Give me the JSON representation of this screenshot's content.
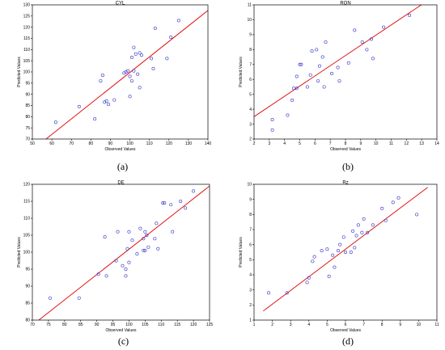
{
  "colors": {
    "points": "#3333cc",
    "fit_line": "#e00000",
    "frame": "#000000"
  },
  "chart_data": [
    {
      "type": "scatter",
      "panel_label": "(a)",
      "title": "CYL",
      "xlabel": "Observed Values",
      "ylabel": "Predicted Values",
      "xlim": [
        50,
        140
      ],
      "ylim": [
        70,
        130
      ],
      "xticks": [
        "50",
        "60",
        "70",
        "80",
        "90",
        "100",
        "110",
        "120",
        "130",
        "140"
      ],
      "yticks": [
        "70",
        "75",
        "80",
        "85",
        "90",
        "95",
        "100",
        "105",
        "110",
        "115",
        "120",
        "125",
        "130"
      ],
      "fit_line": [
        [
          57,
          70
        ],
        [
          140,
          127.5
        ]
      ],
      "points": [
        [
          62,
          77.5
        ],
        [
          74,
          84.5
        ],
        [
          82,
          79
        ],
        [
          85,
          96
        ],
        [
          86,
          98.5
        ],
        [
          87,
          86.5
        ],
        [
          88,
          87
        ],
        [
          89,
          85.5
        ],
        [
          92,
          87.5
        ],
        [
          97,
          99.5
        ],
        [
          98,
          100
        ],
        [
          99,
          100.5
        ],
        [
          100,
          98
        ],
        [
          100,
          89
        ],
        [
          101,
          96
        ],
        [
          101,
          106.5
        ],
        [
          102,
          111
        ],
        [
          102,
          100.5
        ],
        [
          103,
          108
        ],
        [
          104,
          99
        ],
        [
          105,
          93
        ],
        [
          105,
          108.5
        ],
        [
          106,
          107.5
        ],
        [
          111,
          106
        ],
        [
          112,
          101.5
        ],
        [
          113,
          119.5
        ],
        [
          119,
          106
        ],
        [
          121,
          115.5
        ],
        [
          125,
          123
        ]
      ]
    },
    {
      "type": "scatter",
      "panel_label": "(b)",
      "title": "RON",
      "xlabel": "Observed Values",
      "ylabel": "Predicted Values",
      "xlim": [
        2,
        14
      ],
      "ylim": [
        2,
        11
      ],
      "xticks": [
        "2",
        "3",
        "4",
        "5",
        "6",
        "7",
        "8",
        "9",
        "10",
        "11",
        "12",
        "13",
        "14"
      ],
      "yticks": [
        "2",
        "3",
        "4",
        "5",
        "6",
        "7",
        "8",
        "9",
        "10",
        "11"
      ],
      "fit_line": [
        [
          2,
          3.5
        ],
        [
          14,
          11.7
        ]
      ],
      "points": [
        [
          3.2,
          2.6
        ],
        [
          3.2,
          3.3
        ],
        [
          4.2,
          3.6
        ],
        [
          4.5,
          4.6
        ],
        [
          4.6,
          5.4
        ],
        [
          4.8,
          5.4
        ],
        [
          4.8,
          6.2
        ],
        [
          5.0,
          7.0
        ],
        [
          5.1,
          7.0
        ],
        [
          5.5,
          5.5
        ],
        [
          5.7,
          6.3
        ],
        [
          5.8,
          7.9
        ],
        [
          6.1,
          8.0
        ],
        [
          6.2,
          5.9
        ],
        [
          6.3,
          6.9
        ],
        [
          6.5,
          7.5
        ],
        [
          6.6,
          5.5
        ],
        [
          6.7,
          8.5
        ],
        [
          7.1,
          6.4
        ],
        [
          7.5,
          6.8
        ],
        [
          7.6,
          5.9
        ],
        [
          8.2,
          7.1
        ],
        [
          8.6,
          9.3
        ],
        [
          9.1,
          8.5
        ],
        [
          9.4,
          8.0
        ],
        [
          9.7,
          8.7
        ],
        [
          9.8,
          7.4
        ],
        [
          10.5,
          9.5
        ],
        [
          12.2,
          10.3
        ]
      ]
    },
    {
      "type": "scatter",
      "panel_label": "(c)",
      "title": "DE",
      "xlabel": "Observed Values",
      "ylabel": "Predicted Values",
      "xlim": [
        70,
        125
      ],
      "ylim": [
        80,
        120
      ],
      "xticks": [
        "70",
        "75",
        "80",
        "85",
        "90",
        "95",
        "100",
        "105",
        "110",
        "115",
        "120",
        "125"
      ],
      "yticks": [
        "80",
        "85",
        "90",
        "95",
        "100",
        "105",
        "110",
        "115",
        "120"
      ],
      "fit_line": [
        [
          72,
          80
        ],
        [
          125,
          119.5
        ]
      ],
      "points": [
        [
          75.5,
          86.5
        ],
        [
          84.5,
          86.5
        ],
        [
          90.5,
          93.5
        ],
        [
          92.5,
          104.5
        ],
        [
          93,
          93
        ],
        [
          96,
          97.5
        ],
        [
          96.5,
          106
        ],
        [
          98,
          96
        ],
        [
          99,
          95
        ],
        [
          99,
          93
        ],
        [
          99.5,
          101
        ],
        [
          100,
          97
        ],
        [
          100,
          106
        ],
        [
          101,
          103.5
        ],
        [
          102.5,
          99.5
        ],
        [
          103.5,
          107
        ],
        [
          104.5,
          100.5
        ],
        [
          104.5,
          104
        ],
        [
          105,
          106
        ],
        [
          105,
          100.5
        ],
        [
          105.5,
          105
        ],
        [
          106,
          101.5
        ],
        [
          108,
          104
        ],
        [
          108.5,
          108.5
        ],
        [
          109,
          101
        ],
        [
          110.5,
          114.5
        ],
        [
          111,
          114.5
        ],
        [
          113,
          114
        ],
        [
          113.5,
          106
        ],
        [
          116,
          115
        ],
        [
          117.5,
          113
        ],
        [
          120,
          118
        ]
      ]
    },
    {
      "type": "scatter",
      "panel_label": "(d)",
      "title": "Rz",
      "xlabel": "Observed Values",
      "ylabel": "Predicted Values",
      "xlim": [
        1,
        11
      ],
      "ylim": [
        1,
        10
      ],
      "xticks": [
        "1",
        "2",
        "3",
        "4",
        "5",
        "6",
        "7",
        "8",
        "9",
        "10",
        "11"
      ],
      "yticks": [
        "1",
        "2",
        "3",
        "4",
        "5",
        "6",
        "7",
        "8",
        "9",
        "10"
      ],
      "fit_line": [
        [
          1.5,
          1.6
        ],
        [
          10.5,
          9.8
        ]
      ],
      "points": [
        [
          1.8,
          2.8
        ],
        [
          2.8,
          2.8
        ],
        [
          3.9,
          3.5
        ],
        [
          4.0,
          3.8
        ],
        [
          4.2,
          4.9
        ],
        [
          4.3,
          5.2
        ],
        [
          4.7,
          5.6
        ],
        [
          5.0,
          5.7
        ],
        [
          5.1,
          3.9
        ],
        [
          5.3,
          5.3
        ],
        [
          5.4,
          4.5
        ],
        [
          5.6,
          5.6
        ],
        [
          5.7,
          6.0
        ],
        [
          5.9,
          6.5
        ],
        [
          6.0,
          5.5
        ],
        [
          6.3,
          5.5
        ],
        [
          6.4,
          6.9
        ],
        [
          6.5,
          5.8
        ],
        [
          6.6,
          6.6
        ],
        [
          6.7,
          7.3
        ],
        [
          6.9,
          6.8
        ],
        [
          7.0,
          7.7
        ],
        [
          7.2,
          6.8
        ],
        [
          7.5,
          7.3
        ],
        [
          8.0,
          8.4
        ],
        [
          8.2,
          7.6
        ],
        [
          8.6,
          8.8
        ],
        [
          8.9,
          9.1
        ],
        [
          9.9,
          8.0
        ]
      ]
    }
  ]
}
